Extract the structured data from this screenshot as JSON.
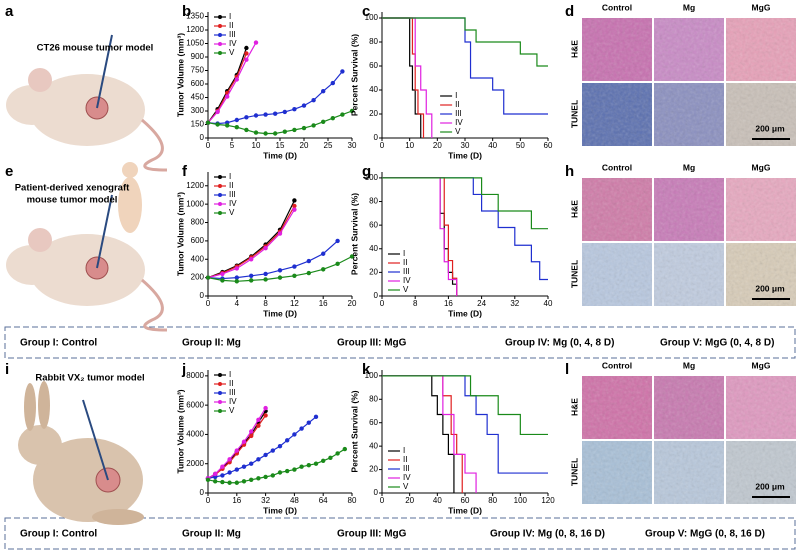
{
  "panel_labels": [
    "a",
    "b",
    "c",
    "d",
    "e",
    "f",
    "g",
    "h",
    "i",
    "j",
    "k",
    "l"
  ],
  "illustrations": [
    {
      "caption": [
        "CT26 mouse tumor model"
      ]
    },
    {
      "caption": [
        "Patient-derived xenograft",
        "mouse tumor model"
      ]
    },
    {
      "caption": [
        "Rabbit VX₂ tumor model"
      ]
    }
  ],
  "histology": [
    {
      "columns": [
        "Control",
        "Mg",
        "MgG"
      ],
      "rows": [
        "H&E",
        "TUNEL"
      ],
      "scale_bar": "200 μm"
    },
    {
      "columns": [
        "Control",
        "Mg",
        "MgG"
      ],
      "rows": [
        "H&E",
        "TUNEL"
      ],
      "scale_bar": "200 μm"
    },
    {
      "columns": [
        "Control",
        "Mg",
        "MgG"
      ],
      "rows": [
        "H&E",
        "TUNEL"
      ],
      "scale_bar": "200 μm"
    }
  ],
  "group_legends": [
    [
      "Group I: Control",
      "Group II: Mg",
      "Group III: MgG",
      "Group IV: Mg (0, 4, 8 D)",
      "Group V: MgG (0, 4, 8 D)"
    ],
    [
      "Group I: Control",
      "Group II: Mg",
      "Group III: MgG",
      "Group IV: Mg (0, 8, 16 D)",
      "Group V: MgG (0, 8, 16 D)"
    ]
  ],
  "chart_data": [
    {
      "type": "line",
      "x_label": "Time (D)",
      "y_label": "Tumor Volume (mm³)",
      "xlim": [
        0,
        30
      ],
      "xticks": [
        0,
        5,
        10,
        15,
        20,
        25,
        30
      ],
      "ylim": [
        0,
        1400
      ],
      "yticks": [
        0,
        150,
        300,
        450,
        600,
        750,
        900,
        1050,
        1200,
        1350
      ],
      "legend": "upper left",
      "series": [
        {
          "name": "I",
          "color": "#000000",
          "x": [
            0,
            2,
            4,
            6,
            8
          ],
          "values": [
            170,
            320,
            520,
            700,
            1000
          ]
        },
        {
          "name": "II",
          "color": "#e02020",
          "x": [
            0,
            2,
            4,
            6,
            8
          ],
          "values": [
            170,
            300,
            500,
            680,
            940
          ]
        },
        {
          "name": "III",
          "color": "#1f2fd0",
          "x": [
            0,
            2,
            4,
            6,
            8,
            10,
            12,
            14,
            16,
            18,
            20,
            22,
            24,
            26,
            28
          ],
          "values": [
            170,
            160,
            170,
            200,
            230,
            250,
            260,
            270,
            290,
            320,
            360,
            420,
            520,
            610,
            740
          ]
        },
        {
          "name": "IV",
          "color": "#e020e0",
          "x": [
            0,
            2,
            4,
            6,
            8,
            10
          ],
          "values": [
            170,
            290,
            460,
            650,
            870,
            1060
          ]
        },
        {
          "name": "V",
          "color": "#1a8a1a",
          "x": [
            0,
            2,
            4,
            6,
            8,
            10,
            12,
            14,
            16,
            18,
            20,
            22,
            24,
            26,
            28,
            30
          ],
          "values": [
            170,
            150,
            140,
            120,
            90,
            60,
            50,
            50,
            70,
            90,
            110,
            140,
            180,
            220,
            260,
            300
          ]
        }
      ]
    },
    {
      "type": "step",
      "x_label": "Time (D)",
      "y_label": "Percent Survival (%)",
      "xlim": [
        0,
        60
      ],
      "xticks": [
        0,
        10,
        20,
        30,
        40,
        50,
        60
      ],
      "ylim": [
        0,
        105
      ],
      "yticks": [
        0,
        20,
        40,
        60,
        80,
        100
      ],
      "legend": "lower center",
      "series": [
        {
          "name": "I",
          "color": "#000000",
          "x": [
            0,
            10,
            11,
            12,
            14
          ],
          "values": [
            100,
            60,
            40,
            20,
            0
          ]
        },
        {
          "name": "II",
          "color": "#e02020",
          "x": [
            0,
            11,
            12,
            13,
            15
          ],
          "values": [
            100,
            70,
            40,
            20,
            0
          ]
        },
        {
          "name": "III",
          "color": "#1f2fd0",
          "x": [
            0,
            30,
            32,
            40,
            44,
            60
          ],
          "values": [
            100,
            80,
            50,
            40,
            20,
            20
          ]
        },
        {
          "name": "IV",
          "color": "#e020e0",
          "x": [
            0,
            12,
            14,
            16,
            18
          ],
          "values": [
            100,
            60,
            40,
            20,
            0
          ]
        },
        {
          "name": "V",
          "color": "#1a8a1a",
          "x": [
            0,
            30,
            34,
            40,
            50,
            56,
            60
          ],
          "values": [
            100,
            90,
            80,
            80,
            70,
            60,
            60
          ]
        }
      ]
    },
    {
      "type": "line",
      "x_label": "Time (D)",
      "y_label": "Tumor Volume (mm³)",
      "xlim": [
        0,
        20
      ],
      "xticks": [
        0,
        4,
        8,
        12,
        16,
        20
      ],
      "ylim": [
        0,
        1350
      ],
      "yticks": [
        0,
        200,
        400,
        600,
        800,
        1000,
        1200
      ],
      "legend": "upper left",
      "series": [
        {
          "name": "I",
          "color": "#000000",
          "x": [
            0,
            2,
            4,
            6,
            8,
            10,
            12
          ],
          "values": [
            200,
            260,
            330,
            430,
            560,
            720,
            1040
          ]
        },
        {
          "name": "II",
          "color": "#e02020",
          "x": [
            0,
            2,
            4,
            6,
            8,
            10,
            12
          ],
          "values": [
            200,
            250,
            320,
            420,
            540,
            700,
            980
          ]
        },
        {
          "name": "III",
          "color": "#1f2fd0",
          "x": [
            0,
            2,
            4,
            6,
            8,
            10,
            12,
            14,
            16,
            18
          ],
          "values": [
            200,
            190,
            200,
            220,
            240,
            280,
            320,
            380,
            460,
            600
          ]
        },
        {
          "name": "IV",
          "color": "#e020e0",
          "x": [
            0,
            2,
            4,
            6,
            8,
            10,
            12
          ],
          "values": [
            200,
            240,
            300,
            400,
            520,
            680,
            940
          ]
        },
        {
          "name": "V",
          "color": "#1a8a1a",
          "x": [
            0,
            2,
            4,
            6,
            8,
            10,
            12,
            14,
            16,
            18,
            20
          ],
          "values": [
            200,
            170,
            160,
            170,
            180,
            200,
            220,
            250,
            290,
            350,
            430
          ]
        }
      ]
    },
    {
      "type": "step",
      "x_label": "Time (D)",
      "y_label": "Percent Survival (%)",
      "xlim": [
        0,
        40
      ],
      "xticks": [
        0,
        8,
        16,
        24,
        32,
        40
      ],
      "ylim": [
        0,
        105
      ],
      "yticks": [
        0,
        20,
        40,
        60,
        80,
        100
      ],
      "legend": "lower left",
      "series": [
        {
          "name": "I",
          "color": "#000000",
          "x": [
            0,
            14,
            15,
            16,
            17,
            18
          ],
          "values": [
            100,
            70,
            40,
            20,
            10,
            0
          ]
        },
        {
          "name": "II",
          "color": "#e02020",
          "x": [
            0,
            15,
            16,
            17,
            18
          ],
          "values": [
            100,
            60,
            30,
            15,
            0
          ]
        },
        {
          "name": "III",
          "color": "#1f2fd0",
          "x": [
            0,
            22,
            24,
            28,
            32,
            36,
            38,
            40
          ],
          "values": [
            100,
            86,
            72,
            58,
            43,
            29,
            14,
            14
          ]
        },
        {
          "name": "IV",
          "color": "#e020e0",
          "x": [
            0,
            14,
            15,
            16,
            18
          ],
          "values": [
            100,
            57,
            29,
            14,
            0
          ]
        },
        {
          "name": "V",
          "color": "#1a8a1a",
          "x": [
            0,
            24,
            26,
            28,
            32,
            36,
            40
          ],
          "values": [
            100,
            86,
            86,
            72,
            72,
            57,
            57
          ]
        }
      ]
    },
    {
      "type": "line",
      "x_label": "Time (D)",
      "y_label": "Tumor Volume (mm³)",
      "xlim": [
        0,
        80
      ],
      "xticks": [
        0,
        16,
        32,
        48,
        64,
        80
      ],
      "ylim": [
        0,
        8400
      ],
      "yticks": [
        0,
        2000,
        4000,
        6000,
        8000
      ],
      "legend": "upper left",
      "series": [
        {
          "name": "I",
          "color": "#000000",
          "x": [
            0,
            4,
            8,
            12,
            16,
            20,
            24,
            28,
            32
          ],
          "values": [
            1000,
            1300,
            1700,
            2200,
            2800,
            3400,
            4000,
            4800,
            5600
          ]
        },
        {
          "name": "II",
          "color": "#e02020",
          "x": [
            0,
            4,
            8,
            12,
            16,
            20,
            24,
            28,
            32
          ],
          "values": [
            1000,
            1250,
            1650,
            2100,
            2700,
            3300,
            3900,
            4600,
            5300
          ]
        },
        {
          "name": "III",
          "color": "#1f2fd0",
          "x": [
            0,
            4,
            8,
            12,
            16,
            20,
            24,
            28,
            32,
            36,
            40,
            44,
            48,
            52,
            56,
            60
          ],
          "values": [
            1000,
            1100,
            1200,
            1400,
            1600,
            1800,
            2000,
            2300,
            2600,
            2900,
            3200,
            3600,
            4000,
            4400,
            4800,
            5200
          ]
        },
        {
          "name": "IV",
          "color": "#e020e0",
          "x": [
            0,
            4,
            8,
            12,
            16,
            20,
            24,
            28,
            32
          ],
          "values": [
            1000,
            1300,
            1800,
            2300,
            2900,
            3500,
            4200,
            5000,
            5800
          ]
        },
        {
          "name": "V",
          "color": "#1a8a1a",
          "x": [
            0,
            4,
            8,
            12,
            16,
            20,
            24,
            28,
            32,
            36,
            40,
            44,
            48,
            52,
            56,
            60,
            64,
            68,
            72,
            76
          ],
          "values": [
            900,
            800,
            750,
            700,
            700,
            800,
            900,
            1000,
            1100,
            1200,
            1400,
            1500,
            1600,
            1800,
            1900,
            2000,
            2200,
            2400,
            2700,
            3000
          ]
        }
      ]
    },
    {
      "type": "step",
      "x_label": "Time (D)",
      "y_label": "Percent Survival (%)",
      "xlim": [
        0,
        120
      ],
      "xticks": [
        0,
        20,
        40,
        60,
        80,
        100,
        120
      ],
      "ylim": [
        0,
        105
      ],
      "yticks": [
        0,
        20,
        40,
        60,
        80,
        100
      ],
      "legend": "lower left",
      "series": [
        {
          "name": "I",
          "color": "#000000",
          "x": [
            0,
            36,
            40,
            44,
            48,
            52
          ],
          "values": [
            100,
            83,
            67,
            50,
            33,
            0
          ]
        },
        {
          "name": "II",
          "color": "#e02020",
          "x": [
            0,
            44,
            50,
            54,
            58
          ],
          "values": [
            100,
            83,
            50,
            33,
            0
          ]
        },
        {
          "name": "III",
          "color": "#1f2fd0",
          "x": [
            0,
            60,
            68,
            76,
            84,
            120
          ],
          "values": [
            100,
            83,
            67,
            50,
            17,
            17
          ]
        },
        {
          "name": "IV",
          "color": "#e020e0",
          "x": [
            0,
            44,
            52,
            60,
            68
          ],
          "values": [
            100,
            67,
            33,
            17,
            0
          ]
        },
        {
          "name": "V",
          "color": "#1a8a1a",
          "x": [
            0,
            64,
            72,
            84,
            100,
            120
          ],
          "values": [
            100,
            83,
            83,
            67,
            50,
            50
          ]
        }
      ]
    }
  ]
}
